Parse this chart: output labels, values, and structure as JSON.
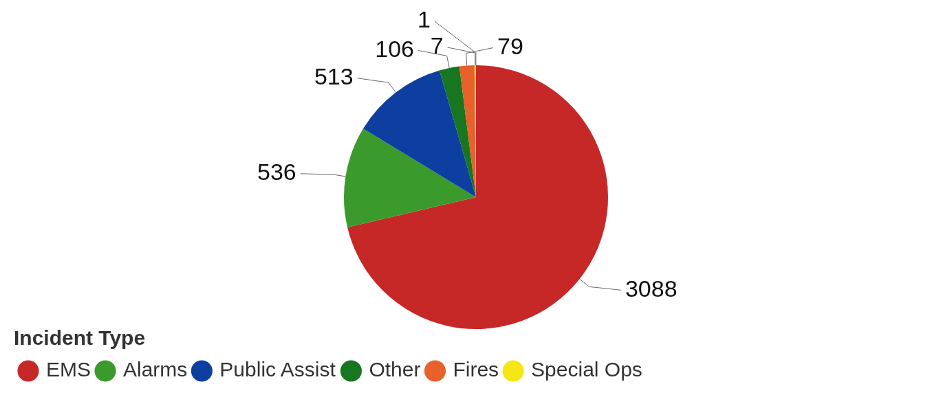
{
  "chart_data": {
    "type": "pie",
    "legend_title": "Incident Type",
    "categories": [
      "EMS",
      "Alarms",
      "Public Assist",
      "Other",
      "Fires",
      "Special Ops",
      null
    ],
    "values": [
      3088,
      536,
      513,
      106,
      79,
      7,
      1
    ],
    "colors": [
      "#c62828",
      "#3a9b2c",
      "#0d3fa0",
      "#17761f",
      "#e8602a",
      "#f5e614",
      "#9e9e9e"
    ],
    "data_labels": true,
    "legend": "bottom left"
  }
}
